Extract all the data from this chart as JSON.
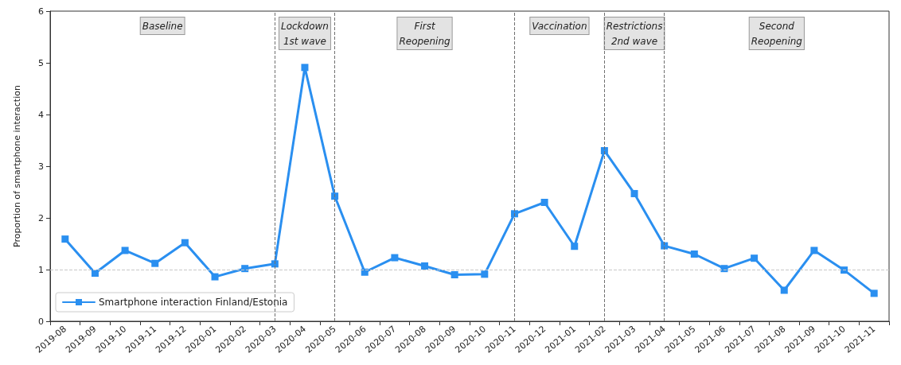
{
  "chart_data": {
    "type": "line",
    "ylabel": "Proportion of smartphone interaction",
    "categories": [
      "2019-08",
      "2019-09",
      "2019-10",
      "2019-11",
      "2019-12",
      "2020-01",
      "2020-02",
      "2020-03",
      "2020-04",
      "2020-05",
      "2020-06",
      "2020-07",
      "2020-08",
      "2020-09",
      "2020-10",
      "2020-11",
      "2020-12",
      "2021-01",
      "2021-02",
      "2021-03",
      "2021-04",
      "2021-05",
      "2021-06",
      "2021-07",
      "2021-08",
      "2021-09",
      "2021-10",
      "2021-11"
    ],
    "series": [
      {
        "name": "Smartphone interaction Finland/Estonia",
        "color": "#2a8ff0",
        "values": [
          1.59,
          0.93,
          1.37,
          1.12,
          1.52,
          0.86,
          1.02,
          1.11,
          4.91,
          2.42,
          0.95,
          1.23,
          1.07,
          0.9,
          0.91,
          2.08,
          2.3,
          1.45,
          3.3,
          2.47,
          1.46,
          1.3,
          1.02,
          1.22,
          0.6,
          1.37,
          0.99,
          0.54
        ]
      }
    ],
    "ylim": [
      0,
      6
    ],
    "yticks": [
      0,
      1,
      2,
      3,
      4,
      5,
      6
    ],
    "ref_lines": [
      {
        "axis": "y",
        "value": 1,
        "color": "#c8c8c8",
        "line_style": "dashed"
      },
      {
        "axis": "x",
        "value": "2020-03",
        "color": "#707070",
        "line_style": "dashed"
      },
      {
        "axis": "x",
        "value": "2020-05",
        "color": "#707070",
        "line_style": "dashed"
      },
      {
        "axis": "x",
        "value": "2020-11",
        "color": "#707070",
        "line_style": "dashed"
      },
      {
        "axis": "x",
        "value": "2021-02",
        "color": "#707070",
        "line_style": "dashed"
      },
      {
        "axis": "x",
        "value": "2021-04",
        "color": "#707070",
        "line_style": "dashed"
      }
    ],
    "annotations": [
      "Baseline",
      "Lockdown\n1st wave",
      "First\nReopening",
      "Vaccination",
      "Restrictions\n2nd wave",
      "Second\nReopening"
    ],
    "legend": "bottom left",
    "marker": "square",
    "line_style": "solid"
  }
}
